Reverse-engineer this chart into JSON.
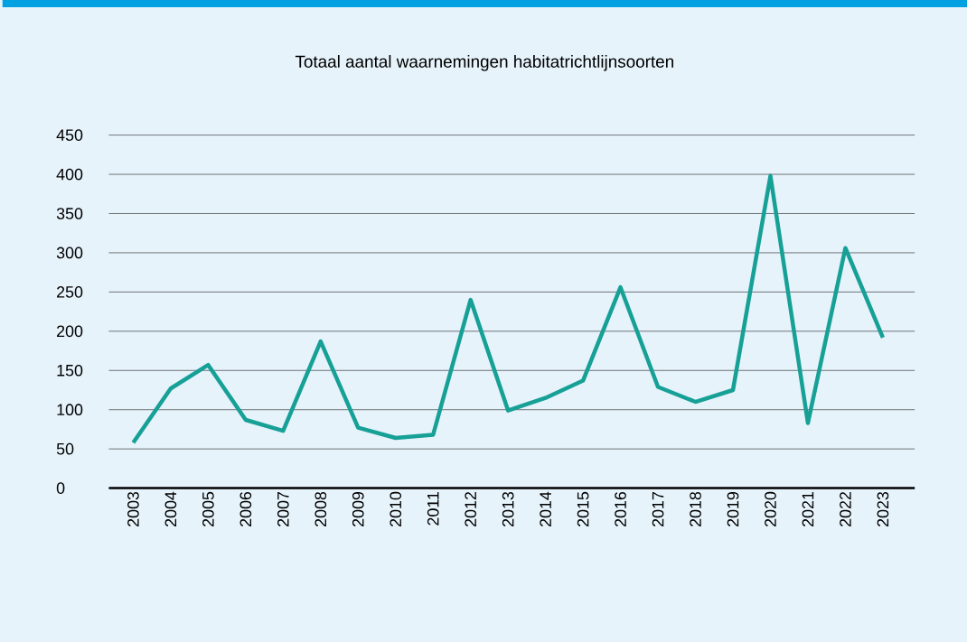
{
  "chart_data": {
    "type": "line",
    "title": "Totaal aantal waarnemingen habitatrichtlijnsoorten",
    "categories": [
      "2003",
      "2004",
      "2005",
      "2006",
      "2007",
      "2008",
      "2009",
      "2010",
      "2011",
      "2012",
      "2013",
      "2014",
      "2015",
      "2016",
      "2017",
      "2018",
      "2019",
      "2020",
      "2021",
      "2022",
      "2023"
    ],
    "series": [
      {
        "color": "#16a096",
        "values": [
          58,
          127,
          157,
          87,
          73,
          187,
          77,
          64,
          68,
          240,
          99,
          115,
          137,
          256,
          129,
          110,
          125,
          398,
          83,
          306,
          192
        ]
      }
    ],
    "ylim": [
      0,
      450
    ],
    "yticks": [
      0,
      50,
      100,
      150,
      200,
      250,
      300,
      350,
      400,
      450
    ],
    "grid": "y",
    "marker": "none",
    "line_style": "solid"
  }
}
